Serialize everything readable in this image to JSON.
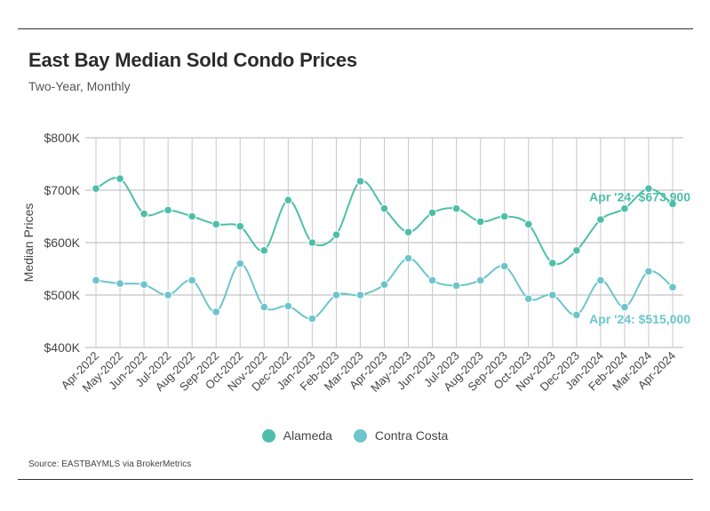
{
  "header": {
    "title": "East Bay Median Sold Condo Prices",
    "subtitle": "Two-Year, Monthly"
  },
  "source": "Source:  EASTBAYMLS via BrokerMetrics",
  "chart_data": {
    "type": "line",
    "title": "East Bay Median Sold Condo Prices",
    "subtitle": "Two-Year, Monthly",
    "xlabel": "",
    "ylabel": "Median Prices",
    "ylim": [
      400000,
      800000
    ],
    "yticks": [
      400000,
      500000,
      600000,
      700000,
      800000
    ],
    "ytick_labels": [
      "$400K",
      "$500K",
      "$600K",
      "$700K",
      "$800K"
    ],
    "grid": true,
    "smooth": true,
    "legend_position": "bottom",
    "categories": [
      "Apr-2022",
      "May-2022",
      "Jun-2022",
      "Jul-2022",
      "Aug-2022",
      "Sep-2022",
      "Oct-2022",
      "Nov-2022",
      "Dec-2022",
      "Jan-2023",
      "Feb-2023",
      "Mar-2023",
      "Apr-2023",
      "May-2023",
      "Jun-2023",
      "Jul-2023",
      "Aug-2023",
      "Sep-2023",
      "Oct-2023",
      "Nov-2023",
      "Dec-2023",
      "Jan-2024",
      "Feb-2024",
      "Mar-2024",
      "Apr-2024"
    ],
    "series": [
      {
        "name": "Alameda",
        "color": "#4dbfa8",
        "values": [
          703000,
          722000,
          655000,
          662000,
          650000,
          635000,
          631000,
          585000,
          681000,
          600000,
          615000,
          717000,
          665000,
          620000,
          657000,
          665000,
          640000,
          650000,
          635000,
          561000,
          585000,
          644000,
          665000,
          703000,
          673900
        ],
        "annotation": "Apr '24: $673,900"
      },
      {
        "name": "Contra Costa",
        "color": "#6cc5cb",
        "values": [
          528000,
          522000,
          520000,
          500000,
          528000,
          468000,
          560000,
          477000,
          479000,
          455000,
          500000,
          500000,
          520000,
          570000,
          528000,
          518000,
          528000,
          555000,
          493000,
          500000,
          462000,
          528000,
          477000,
          545000,
          515000
        ],
        "annotation": "Apr '24: $515,000"
      }
    ]
  }
}
